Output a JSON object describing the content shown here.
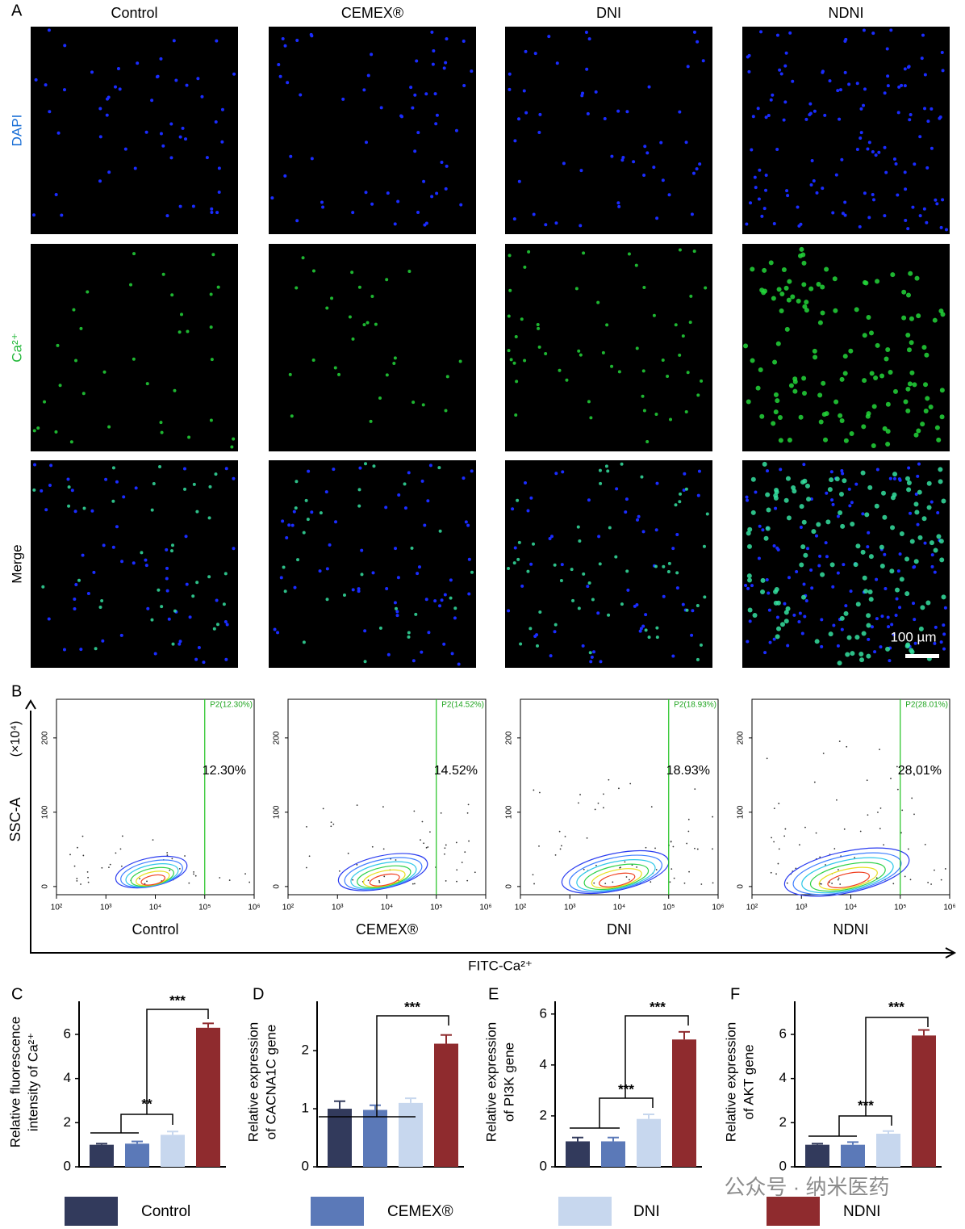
{
  "panel_labels": [
    "A",
    "B",
    "C",
    "D",
    "E",
    "F"
  ],
  "imaging": {
    "columns": [
      "Control",
      "CEMEX®",
      "DNI",
      "NDNI"
    ],
    "rows": [
      "DAPI",
      "Ca²⁺",
      "Merge"
    ],
    "scale_bar": "100 µm"
  },
  "flow_cytometry": {
    "x_label": "FITC-Ca²⁺",
    "y_label": "SSC-A",
    "y_unit": "(×10⁴)",
    "xlim": [
      100,
      1000000
    ],
    "xticks": [
      {
        "value": 100,
        "label": "10²"
      },
      {
        "value": 1000,
        "label": "10³"
      },
      {
        "value": 10000,
        "label": "10⁴"
      },
      {
        "value": 100000,
        "label": "10⁵"
      },
      {
        "value": 1000000,
        "label": "10⁶"
      }
    ],
    "ylim": [
      -11,
      252
    ],
    "yticks": [
      0,
      100,
      200
    ],
    "plots": [
      {
        "name": "Control",
        "gate": "P2(12.30%)",
        "percent": "12.30%"
      },
      {
        "name": "CEMEX®",
        "gate": "P2(14.52%)",
        "percent": "14.52%"
      },
      {
        "name": "DNI",
        "gate": "P2(18.93%)",
        "percent": "18.93%"
      },
      {
        "name": "NDNI",
        "gate": "P2(28.01%)",
        "percent": "28.01%"
      }
    ]
  },
  "chart_data": [
    {
      "type": "bar",
      "y_label": [
        "Relative fluorescence",
        "intensity of Ca²⁺"
      ],
      "categories": [
        "Control",
        "CEMEX®",
        "DNI",
        "NDNI"
      ],
      "colors": [
        "#323a5c",
        "#5b79b8",
        "#c7d7ee",
        "#8f2b2e"
      ],
      "values": [
        1.0,
        1.05,
        1.45,
        6.3
      ],
      "errors": [
        0.05,
        0.1,
        0.15,
        0.2
      ],
      "ylim": [
        0,
        7.5
      ],
      "yticks": [
        0,
        2,
        4,
        6
      ],
      "annotations": [
        "**",
        "***"
      ]
    },
    {
      "type": "bar",
      "y_label": [
        "Relative expression",
        "of CACNA1C gene"
      ],
      "categories": [
        "Control",
        "CEMEX®",
        "DNI",
        "NDNI"
      ],
      "colors": [
        "#323a5c",
        "#5b79b8",
        "#c7d7ee",
        "#8f2b2e"
      ],
      "values": [
        1.0,
        0.98,
        1.1,
        2.12
      ],
      "errors": [
        0.13,
        0.08,
        0.08,
        0.15
      ],
      "ylim": [
        0,
        2.85
      ],
      "yticks": [
        0,
        1,
        2
      ],
      "annotations": [
        "***"
      ]
    },
    {
      "type": "bar",
      "y_label": [
        "Relative  expression",
        "of PI3K gene"
      ],
      "categories": [
        "Control",
        "CEMEX®",
        "DNI",
        "NDNI"
      ],
      "colors": [
        "#323a5c",
        "#5b79b8",
        "#c7d7ee",
        "#8f2b2e"
      ],
      "values": [
        1.0,
        1.0,
        1.88,
        5.0
      ],
      "errors": [
        0.15,
        0.15,
        0.18,
        0.3
      ],
      "ylim": [
        0,
        6.5
      ],
      "yticks": [
        0,
        2,
        4,
        6
      ],
      "annotations": [
        "***",
        "***"
      ]
    },
    {
      "type": "bar",
      "y_label": [
        "Relative expression",
        "of AKT gene"
      ],
      "categories": [
        "Control",
        "CEMEX®",
        "DNI",
        "NDNI"
      ],
      "colors": [
        "#323a5c",
        "#5b79b8",
        "#c7d7ee",
        "#8f2b2e"
      ],
      "values": [
        1.0,
        1.0,
        1.5,
        5.95
      ],
      "errors": [
        0.05,
        0.12,
        0.12,
        0.25
      ],
      "ylim": [
        0,
        7.5
      ],
      "yticks": [
        0,
        2,
        4,
        6
      ],
      "annotations": [
        "***",
        "***"
      ]
    }
  ],
  "watermark": "公众号 · 纳米医药"
}
